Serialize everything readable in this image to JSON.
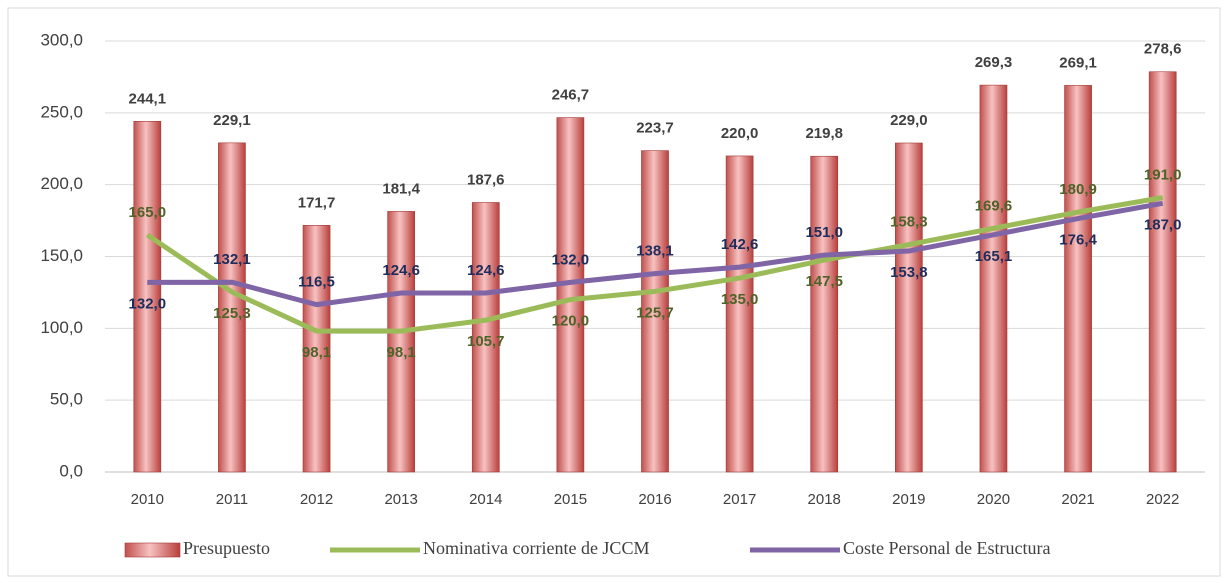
{
  "chart_data": {
    "type": "bar",
    "categories": [
      "2010",
      "2011",
      "2012",
      "2013",
      "2014",
      "2015",
      "2016",
      "2017",
      "2018",
      "2019",
      "2020",
      "2021",
      "2022"
    ],
    "series": [
      {
        "name": "Presupuesto",
        "type": "bar",
        "color": "#c0504d",
        "values": [
          244.1,
          229.1,
          171.7,
          181.4,
          187.6,
          246.7,
          223.7,
          220.0,
          219.8,
          229.0,
          269.3,
          269.1,
          278.6
        ],
        "value_labels": [
          "244,1",
          "229,1",
          "171,7",
          "181,4",
          "187,6",
          "246,7",
          "223,7",
          "220,0",
          "219,8",
          "229,0",
          "269,3",
          "269,1",
          "278,6"
        ]
      },
      {
        "name": "Nominativa corriente de JCCM",
        "type": "line",
        "color": "#9bbb59",
        "values": [
          165.0,
          125.3,
          98.1,
          98.1,
          105.7,
          120.0,
          125.7,
          135.0,
          147.5,
          158.3,
          169.6,
          180.9,
          191.0
        ],
        "value_labels": [
          "165,0",
          "125,3",
          "98,1",
          "98,1",
          "105,7",
          "120,0",
          "125,7",
          "135,0",
          "147,5",
          "158,3",
          "169,6",
          "180,9",
          "191,0"
        ]
      },
      {
        "name": "Coste Personal de Estructura",
        "type": "line",
        "color": "#7f64a6",
        "values": [
          132.0,
          132.1,
          116.5,
          124.6,
          124.6,
          132.0,
          138.1,
          142.6,
          151.0,
          153.8,
          165.1,
          176.4,
          187.0
        ],
        "value_labels": [
          "132,0",
          "132,1",
          "116,5",
          "124,6",
          "124,6",
          "132,0",
          "138,1",
          "142,6",
          "151,0",
          "153,8",
          "165,1",
          "176,4",
          "187,0"
        ]
      }
    ],
    "ylim": [
      0,
      300
    ],
    "yticks": [
      {
        "value": 0,
        "label": "0,0"
      },
      {
        "value": 50,
        "label": "50,0"
      },
      {
        "value": 100,
        "label": "100,0"
      },
      {
        "value": 150,
        "label": "150,0"
      },
      {
        "value": 200,
        "label": "200,0"
      },
      {
        "value": 250,
        "label": "250,0"
      },
      {
        "value": 300,
        "label": "300,0"
      }
    ],
    "grid": true,
    "legend": "bottom"
  }
}
